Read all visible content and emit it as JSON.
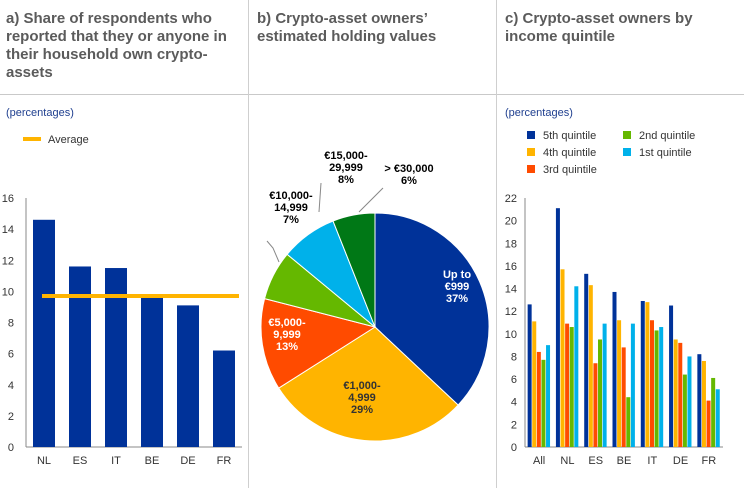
{
  "panel_a": {
    "title": "a) Share of respondents who reported that they or anyone in their household own crypto-assets",
    "units": "(percentages)",
    "legend_label": "Average"
  },
  "panel_b": {
    "title": "b) Crypto-asset owners’ estimated holding values"
  },
  "panel_c": {
    "title": "c) Crypto-asset owners by income quintile",
    "units": "(percentages)"
  },
  "chart_data": [
    {
      "type": "bar",
      "title": "a) Share of respondents who reported that they or anyone in their household own crypto-assets",
      "units": "(percentages)",
      "categories": [
        "NL",
        "ES",
        "IT",
        "BE",
        "DE",
        "FR"
      ],
      "values": [
        14.6,
        11.6,
        11.5,
        9.6,
        9.1,
        6.2
      ],
      "average": 9.7,
      "legend": [
        "Average"
      ],
      "ylim": [
        0,
        16
      ],
      "yticks": [
        0,
        2,
        4,
        6,
        8,
        10,
        12,
        14,
        16
      ],
      "bar_color": "#003299",
      "average_color": "#ffb400"
    },
    {
      "type": "pie",
      "title": "b) Crypto-asset owners’ estimated holding values",
      "slices": [
        {
          "label": "Up to\n€999\n37%",
          "value": 37,
          "color": "#003299",
          "text_color": "#ffffff"
        },
        {
          "label": "€1,000-\n4,999\n29%",
          "value": 29,
          "color": "#ffb400",
          "text_color": "#333333"
        },
        {
          "label": "€5,000-\n9,999\n13%",
          "value": 13,
          "color": "#ff4b00",
          "text_color": "#ffffff"
        },
        {
          "label": "€10,000-\n14,999\n7%",
          "value": 7,
          "color": "#65b800",
          "text_color": "#000000"
        },
        {
          "label": "€15,000-\n29,999\n8%",
          "value": 8,
          "color": "#00b1ea",
          "text_color": "#000000"
        },
        {
          "label": "> €30,000\n6%",
          "value": 6,
          "color": "#007816",
          "text_color": "#000000"
        }
      ]
    },
    {
      "type": "bar",
      "title": "c) Crypto-asset owners by income quintile",
      "units": "(percentages)",
      "categories": [
        "All",
        "NL",
        "ES",
        "BE",
        "IT",
        "DE",
        "FR"
      ],
      "series": [
        {
          "name": "5th quintile",
          "color": "#003299",
          "values": [
            12.6,
            21.1,
            15.3,
            13.7,
            12.9,
            12.5,
            8.2
          ]
        },
        {
          "name": "4th quintile",
          "color": "#ffb400",
          "values": [
            11.1,
            15.7,
            14.3,
            11.2,
            12.8,
            9.5,
            7.6
          ]
        },
        {
          "name": "3rd quintile",
          "color": "#ff4b00",
          "values": [
            8.4,
            10.9,
            7.4,
            8.8,
            11.2,
            9.2,
            4.1
          ]
        },
        {
          "name": "2nd quintile",
          "color": "#65b800",
          "values": [
            7.7,
            10.6,
            9.5,
            4.4,
            10.3,
            6.4,
            6.1
          ]
        },
        {
          "name": "1st quintile",
          "color": "#00b1ea",
          "values": [
            9.0,
            14.2,
            10.9,
            10.9,
            10.6,
            8.0,
            5.1
          ]
        }
      ],
      "ylim": [
        0,
        22
      ],
      "yticks": [
        0,
        2,
        4,
        6,
        8,
        10,
        12,
        14,
        16,
        18,
        20,
        22
      ]
    }
  ]
}
